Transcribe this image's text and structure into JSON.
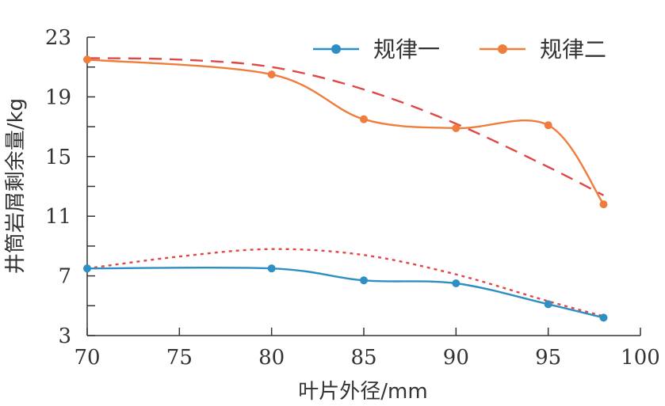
{
  "chart_data": {
    "type": "line",
    "xlabel": "叶片外径/mm",
    "ylabel": "井筒岩屑剩余量/kg",
    "xlim": [
      70,
      100
    ],
    "ylim": [
      3,
      23
    ],
    "xticks": [
      70,
      75,
      80,
      85,
      90,
      95,
      100
    ],
    "yticks": [
      3,
      7,
      11,
      15,
      19,
      23
    ],
    "xtick_labels": [
      "70",
      "75",
      "80",
      "85",
      "90",
      "95",
      "100"
    ],
    "ytick_labels": [
      "3",
      "7",
      "11",
      "15",
      "19",
      "23"
    ],
    "grid": false,
    "legend_position": "top-right",
    "series": [
      {
        "name": "规律一",
        "color": "#2e8fc4",
        "x": [
          70,
          80,
          85,
          90,
          95,
          98
        ],
        "y": [
          7.5,
          7.5,
          6.7,
          6.5,
          5.1,
          4.2
        ]
      },
      {
        "name": "规律二",
        "color": "#ef7d3c",
        "x": [
          70,
          80,
          85,
          90,
          95,
          98
        ],
        "y": [
          21.5,
          20.5,
          17.5,
          16.9,
          17.1,
          11.8
        ]
      }
    ],
    "trend_lines": [
      {
        "series": "规律一",
        "style": "dotted",
        "color": "#e04848",
        "x": [
          70,
          75,
          80,
          85,
          90,
          95,
          98
        ],
        "y": [
          7.5,
          8.3,
          8.8,
          8.4,
          7.1,
          5.3,
          4.3
        ]
      },
      {
        "series": "规律二",
        "style": "dashed",
        "color": "#e04848",
        "x": [
          70,
          75,
          80,
          85,
          90,
          95,
          98
        ],
        "y": [
          21.6,
          21.5,
          21.0,
          19.5,
          17.2,
          14.3,
          12.4
        ]
      }
    ]
  }
}
